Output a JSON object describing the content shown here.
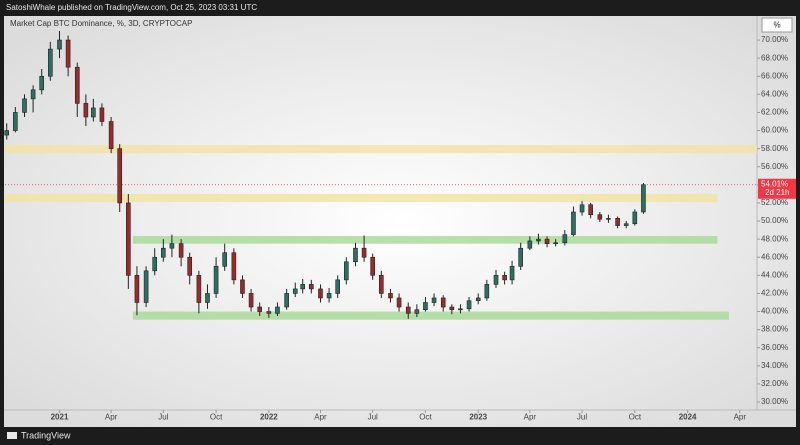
{
  "header": {
    "byline": "SatoshiWhale published on TradingView.com, Oct 25, 2023 03:31 UTC"
  },
  "footer": {
    "brand": "TradingView"
  },
  "chart_data": {
    "type": "candlestick",
    "title": "Market Cap BTC Dominance, %, 3D, CRYPTOCAP",
    "scale_button": "%",
    "up_color": "#2e6f63",
    "down_color": "#9a2b2b",
    "x": [
      "2020-10-01",
      "2020-10-16",
      "2020-11-01",
      "2020-11-16",
      "2020-12-01",
      "2020-12-16",
      "2021-01-01",
      "2021-01-16",
      "2021-02-01",
      "2021-02-16",
      "2021-03-01",
      "2021-03-16",
      "2021-04-01",
      "2021-04-16",
      "2021-05-01",
      "2021-05-16",
      "2021-06-01",
      "2021-06-16",
      "2021-07-01",
      "2021-07-16",
      "2021-08-01",
      "2021-08-16",
      "2021-09-01",
      "2021-09-16",
      "2021-10-01",
      "2021-10-16",
      "2021-11-01",
      "2021-11-16",
      "2021-12-01",
      "2021-12-16",
      "2022-01-01",
      "2022-01-16",
      "2022-02-01",
      "2022-02-16",
      "2022-03-01",
      "2022-03-16",
      "2022-04-01",
      "2022-04-16",
      "2022-05-01",
      "2022-05-16",
      "2022-06-01",
      "2022-06-16",
      "2022-07-01",
      "2022-07-16",
      "2022-08-01",
      "2022-08-16",
      "2022-09-01",
      "2022-09-16",
      "2022-10-01",
      "2022-10-16",
      "2022-11-01",
      "2022-11-16",
      "2022-12-01",
      "2022-12-16",
      "2023-01-01",
      "2023-01-16",
      "2023-02-01",
      "2023-02-16",
      "2023-03-01",
      "2023-03-16",
      "2023-04-01",
      "2023-04-16",
      "2023-05-01",
      "2023-05-16",
      "2023-06-01",
      "2023-06-16",
      "2023-07-01",
      "2023-07-16",
      "2023-08-01",
      "2023-08-16",
      "2023-09-01",
      "2023-09-16",
      "2023-10-01",
      "2023-10-16"
    ],
    "open": [
      59.5,
      60,
      62,
      63.5,
      64.5,
      66,
      69,
      70,
      67,
      63,
      61.5,
      62.5,
      61,
      58,
      52,
      44,
      41,
      44.5,
      46,
      47,
      47.5,
      46,
      44,
      41,
      42,
      45,
      46.5,
      43.5,
      42,
      40.5,
      40,
      39.8,
      40.5,
      42,
      42.5,
      43,
      42.5,
      41.5,
      42,
      43.5,
      45.5,
      47,
      46,
      44,
      42,
      41.5,
      40.5,
      39.8,
      40.2,
      41,
      41.5,
      40.5,
      40.2,
      40.3,
      41.2,
      41.5,
      43,
      44,
      43.5,
      45,
      47,
      47.8,
      48,
      47.5,
      47.6,
      48.5,
      51,
      51.8,
      50.7,
      50.2,
      50.3,
      49.5,
      49.7,
      51
    ],
    "high": [
      60.8,
      62.6,
      64,
      65,
      66.8,
      69.8,
      71,
      70.5,
      67.5,
      64,
      63.5,
      63,
      61.5,
      58.5,
      53,
      45,
      45,
      47,
      48,
      48.5,
      48,
      46.5,
      44.5,
      43,
      46,
      47.5,
      47,
      44,
      42.5,
      41,
      40.5,
      41,
      42.5,
      43.2,
      43.6,
      43.5,
      43,
      42.6,
      44,
      46,
      47.6,
      48.4,
      46.4,
      44.5,
      42.5,
      42,
      41,
      40.8,
      41.6,
      42,
      41.8,
      40.8,
      40.8,
      41.6,
      42,
      43.5,
      44.6,
      44.4,
      45.6,
      47.6,
      48.3,
      48.6,
      48.3,
      48,
      49,
      51.6,
      52.2,
      52,
      51,
      50.7,
      50.5,
      50,
      51.3,
      54.2
    ],
    "low": [
      59,
      59.8,
      61.5,
      62,
      64,
      65.5,
      68,
      66,
      61.5,
      60.5,
      61,
      60.5,
      57.5,
      51,
      42.5,
      39.6,
      40.5,
      44,
      45.5,
      46,
      45,
      43,
      39.8,
      40.3,
      41.5,
      44.5,
      43,
      41.5,
      40,
      39.5,
      39.3,
      39.5,
      40.2,
      41.6,
      42,
      42,
      41,
      41,
      41.5,
      43,
      45,
      45.5,
      43.5,
      41.5,
      41,
      40,
      39.2,
      39.4,
      40,
      40.6,
      40,
      39.7,
      39.8,
      40,
      40.8,
      41.2,
      42.6,
      43,
      43,
      44.6,
      46.8,
      47.4,
      47.1,
      47.2,
      47.3,
      48.3,
      50.6,
      50.3,
      49.9,
      49.8,
      49.2,
      49.2,
      49.5,
      50.8
    ],
    "close": [
      60,
      62,
      63.5,
      64.5,
      66,
      69,
      70,
      67,
      63,
      61.5,
      62.5,
      61,
      58,
      52,
      44,
      41,
      44.5,
      46,
      47,
      47.5,
      46,
      44,
      41,
      42,
      45,
      46.5,
      43.5,
      42,
      40.5,
      40,
      39.8,
      40.5,
      42,
      42.5,
      43,
      42.5,
      41.5,
      42,
      43.5,
      45.5,
      47,
      46,
      44,
      42,
      41.5,
      40.5,
      39.8,
      40.2,
      41,
      41.5,
      40.5,
      40.2,
      40.3,
      41.2,
      41.5,
      43,
      44,
      43.5,
      45,
      47,
      47.8,
      48,
      47.5,
      47.6,
      48.5,
      51,
      51.8,
      50.7,
      50.2,
      50.3,
      49.5,
      49.7,
      51,
      54.01
    ],
    "last_price": {
      "value": 54.01,
      "label": "54.01%",
      "countdown": "2d 21h",
      "color": "#f23645"
    },
    "zones": [
      {
        "color": "#f3e3a3",
        "ylim": [
          57.5,
          58.4
        ],
        "xlim": [
          "2020-09-28",
          "2024-05-01"
        ]
      },
      {
        "color": "#f3e3a3",
        "ylim": [
          52.1,
          53.0
        ],
        "xlim": [
          "2020-09-28",
          "2024-02-22"
        ]
      },
      {
        "color": "#a9d99a",
        "ylim": [
          47.5,
          48.35
        ],
        "xlim": [
          "2021-05-09",
          "2024-02-22"
        ]
      },
      {
        "color": "#a9d99a",
        "ylim": [
          39.1,
          40.0
        ],
        "xlim": [
          "2021-05-09",
          "2024-03-13"
        ]
      }
    ],
    "xlim": [
      "2020-09-28",
      "2024-05-01"
    ],
    "ylim": [
      29.12,
      71
    ],
    "xticks": [
      {
        "value": "2021-01-01",
        "label": "2021"
      },
      {
        "value": "2021-04-01",
        "label": "Apr"
      },
      {
        "value": "2021-07-01",
        "label": "Jul"
      },
      {
        "value": "2021-10-01",
        "label": "Oct"
      },
      {
        "value": "2022-01-01",
        "label": "2022"
      },
      {
        "value": "2022-04-01",
        "label": "Apr"
      },
      {
        "value": "2022-07-01",
        "label": "Jul"
      },
      {
        "value": "2022-10-01",
        "label": "Oct"
      },
      {
        "value": "2023-01-01",
        "label": "2023"
      },
      {
        "value": "2023-04-01",
        "label": "Apr"
      },
      {
        "value": "2023-07-01",
        "label": "Jul"
      },
      {
        "value": "2023-10-01",
        "label": "Oct"
      },
      {
        "value": "2024-01-01",
        "label": "2024"
      },
      {
        "value": "2024-04-01",
        "label": "Apr"
      }
    ],
    "yticks": [
      {
        "value": 30,
        "label": "30.00%"
      },
      {
        "value": 32,
        "label": "32.00%"
      },
      {
        "value": 34,
        "label": "34.00%"
      },
      {
        "value": 36,
        "label": "36.00%"
      },
      {
        "value": 38,
        "label": "38.00%"
      },
      {
        "value": 40,
        "label": "40.00%"
      },
      {
        "value": 42,
        "label": "42.00%"
      },
      {
        "value": 44,
        "label": "44.00%"
      },
      {
        "value": 46,
        "label": "46.00%"
      },
      {
        "value": 48,
        "label": "48.00%"
      },
      {
        "value": 50,
        "label": "50.00%"
      },
      {
        "value": 52,
        "label": "52.00%"
      },
      {
        "value": 54,
        "label": "54.00%"
      },
      {
        "value": 56,
        "label": "56.00%"
      },
      {
        "value": 58,
        "label": "58.00%"
      },
      {
        "value": 60,
        "label": "60.00%"
      },
      {
        "value": 62,
        "label": "62.00%"
      },
      {
        "value": 64,
        "label": "64.00%"
      },
      {
        "value": 66,
        "label": "66.00%"
      },
      {
        "value": 68,
        "label": "68.00%"
      },
      {
        "value": 70,
        "label": "70.00%"
      }
    ]
  }
}
